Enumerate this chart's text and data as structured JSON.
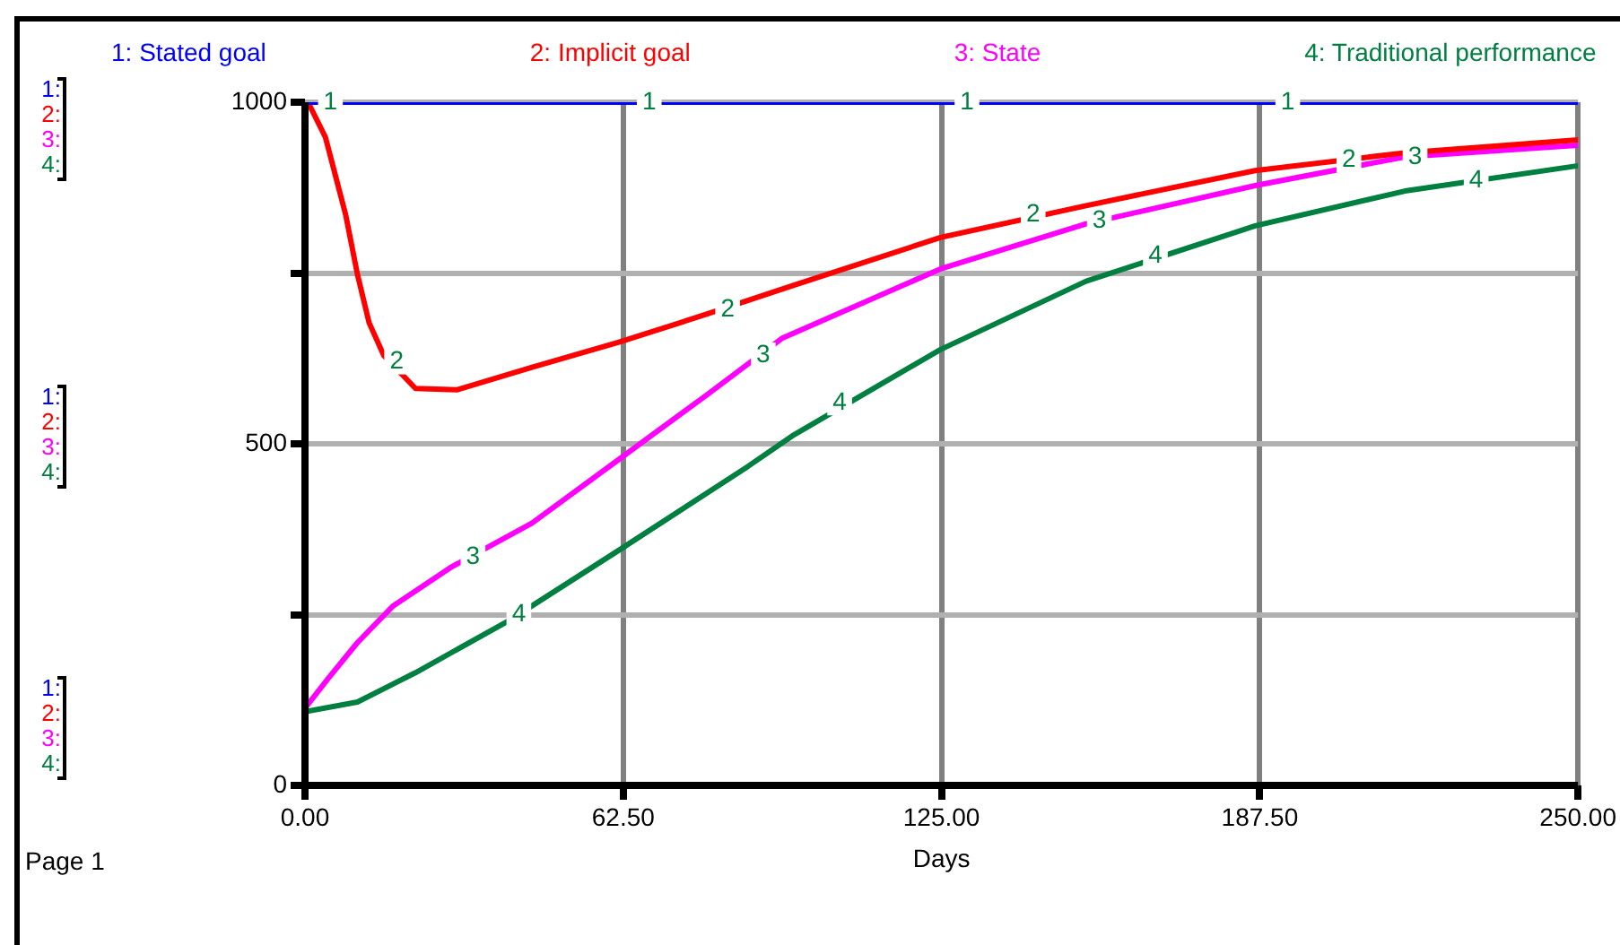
{
  "chart_data": {
    "type": "line",
    "xlabel": "Days",
    "legend": "top",
    "grid": true,
    "line_style": "solid",
    "marker": "none",
    "xlim": [
      0,
      250
    ],
    "xticks": [
      {
        "value": 0,
        "label": "0.00"
      },
      {
        "value": 62.5,
        "label": "62.50"
      },
      {
        "value": 125,
        "label": "125.00"
      },
      {
        "value": 187.5,
        "label": "187.50"
      },
      {
        "value": 250,
        "label": "250.00"
      }
    ],
    "ylim": [
      0,
      1000
    ],
    "yticks": [
      0,
      {
        "value": 250,
        "label": null
      },
      500,
      {
        "value": 750,
        "label": null
      },
      1000
    ],
    "series": [
      {
        "name": "1: Stated goal",
        "color": "#0000ff",
        "x": [
          0,
          250
        ],
        "values": [
          1000,
          1000
        ]
      },
      {
        "name": "2: Implicit goal",
        "color": "#ff0000",
        "x": [
          0,
          0.6,
          4,
          8,
          10.3,
          12.6,
          15.5,
          21.7,
          29.8,
          44.6,
          61.8,
          79,
          96,
          124.8,
          153,
          186.6,
          216,
          250
        ],
        "values": [
          1000,
          1000,
          949,
          835,
          748,
          677,
          629,
          581,
          579,
          612,
          649,
          690,
          732,
          802,
          848,
          900,
          926,
          945
        ]
      },
      {
        "name": "3: State",
        "color": "#ff00ff",
        "x": [
          0,
          4.6,
          10.3,
          17.2,
          28.6,
          44.6,
          61.8,
          79,
          93.8,
          124.8,
          153.4,
          186.6,
          216,
          250
        ],
        "values": [
          113,
          157,
          209,
          262,
          319,
          384,
          478,
          572,
          655,
          756,
          822,
          878,
          920,
          937
        ]
      },
      {
        "name": "4: Traditional performance",
        "color": "#008040",
        "x": [
          0,
          10.3,
          21.7,
          40,
          61.8,
          87,
          96,
          124.8,
          153.4,
          186.6,
          216,
          250
        ],
        "values": [
          108,
          122,
          165,
          241,
          345,
          467,
          513,
          638,
          738,
          819,
          870,
          907
        ]
      }
    ],
    "annotations": [
      "Page 1",
      "1:",
      "2:",
      "3:",
      "4:",
      {
        "text": "1",
        "x": 5,
        "y": 1000
      },
      {
        "text": "1",
        "x": 67.6,
        "y": 1000
      },
      {
        "text": "1",
        "x": 130,
        "y": 1000
      },
      {
        "text": "1",
        "x": 193,
        "y": 1000
      },
      {
        "text": "2",
        "x": 18,
        "y": 620
      },
      {
        "text": "2",
        "x": 83,
        "y": 697
      },
      {
        "text": "2",
        "x": 143,
        "y": 835
      },
      {
        "text": "2",
        "x": 205,
        "y": 915
      },
      {
        "text": "3",
        "x": 33,
        "y": 334
      },
      {
        "text": "3",
        "x": 90,
        "y": 630
      },
      {
        "text": "3",
        "x": 156,
        "y": 826
      },
      {
        "text": "3",
        "x": 218,
        "y": 920
      },
      {
        "text": "4",
        "x": 42,
        "y": 250
      },
      {
        "text": "4",
        "x": 105,
        "y": 560
      },
      {
        "text": "4",
        "x": 167,
        "y": 775
      },
      {
        "text": "4",
        "x": 230,
        "y": 885
      }
    ]
  }
}
